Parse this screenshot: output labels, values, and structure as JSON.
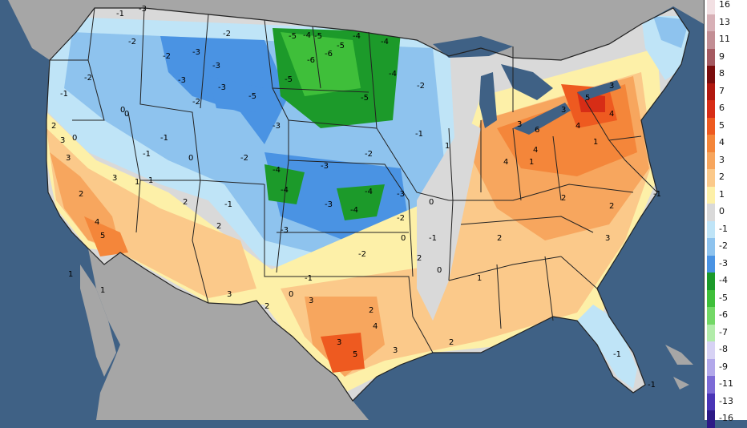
{
  "colors": {
    "ocean": "#3f6185",
    "land_outside": "#a6a6a6",
    "state_border": "#222222"
  },
  "legend": {
    "items": [
      {
        "label": "16",
        "color": "#f2e0e3"
      },
      {
        "label": "13",
        "color": "#d7b0b6"
      },
      {
        "label": "11",
        "color": "#c28e94"
      },
      {
        "label": "9",
        "color": "#a55a61"
      },
      {
        "label": "8",
        "color": "#7a0d0d"
      },
      {
        "label": "7",
        "color": "#b0180f"
      },
      {
        "label": "6",
        "color": "#d72d16"
      },
      {
        "label": "5",
        "color": "#ee5a20"
      },
      {
        "label": "4",
        "color": "#f4863a"
      },
      {
        "label": "3",
        "color": "#f7a65e"
      },
      {
        "label": "2",
        "color": "#fbc98a"
      },
      {
        "label": "1",
        "color": "#fdf0a8"
      },
      {
        "label": "0",
        "color": "#d9d9d9"
      },
      {
        "label": "-1",
        "color": "#bfe4f7"
      },
      {
        "label": "-2",
        "color": "#8ec3ee"
      },
      {
        "label": "-3",
        "color": "#4a93e3"
      },
      {
        "label": "-4",
        "color": "#1c9a2a"
      },
      {
        "label": "-5",
        "color": "#3fbf3a"
      },
      {
        "label": "-6",
        "color": "#73d866"
      },
      {
        "label": "-7",
        "color": "#b2ecaa"
      },
      {
        "label": "-8",
        "color": "#d7d2f4"
      },
      {
        "label": "-9",
        "color": "#b2a8ea"
      },
      {
        "label": "-11",
        "color": "#7d6bd6"
      },
      {
        "label": "-13",
        "color": "#4a35b6"
      },
      {
        "label": "-16",
        "color": "#2d1a86"
      }
    ]
  },
  "annotations": [
    {
      "label": "-3",
      "value": -3
    },
    {
      "label": "-2",
      "value": -2
    },
    {
      "label": "-5",
      "value": -5
    },
    {
      "label": "-4",
      "value": -4
    },
    {
      "label": "-6",
      "value": -6
    },
    {
      "label": "-1",
      "value": -1
    },
    {
      "label": "0",
      "value": 0
    },
    {
      "label": "1",
      "value": 1
    },
    {
      "label": "2",
      "value": 2
    },
    {
      "label": "3",
      "value": 3
    },
    {
      "label": "4",
      "value": 4
    },
    {
      "label": "5",
      "value": 5
    },
    {
      "label": "6",
      "value": 6
    }
  ]
}
